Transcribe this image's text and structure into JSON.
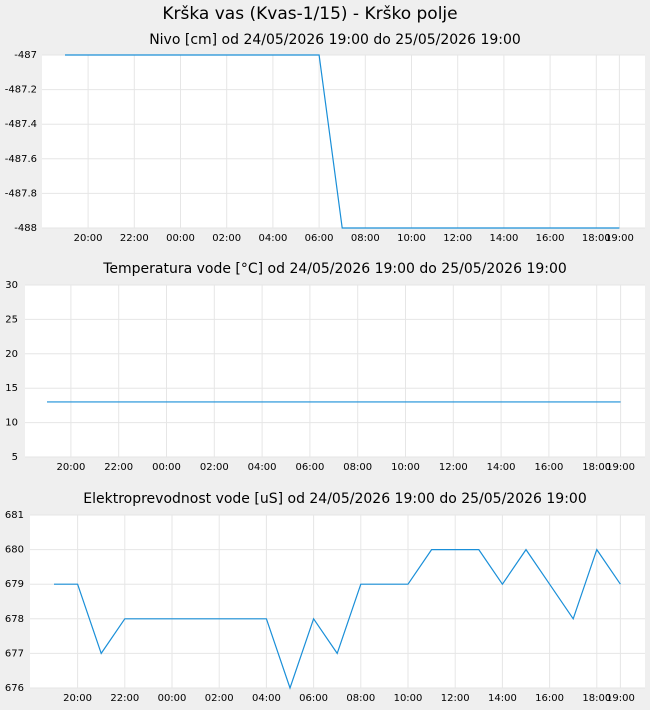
{
  "title": "Krška vas (Kvas-1/15) - Krško polje",
  "chart_data": [
    {
      "type": "line",
      "title": "Nivo [cm] od 24/05/2026 19:00 do 25/05/2026 19:00",
      "categories": [
        null,
        "20:00",
        null,
        "22:00",
        null,
        "00:00",
        null,
        "02:00",
        null,
        "04:00",
        null,
        "06:00",
        null,
        "08:00",
        null,
        "10:00",
        null,
        "12:00",
        null,
        "14:00",
        null,
        "16:00",
        null,
        "18:00",
        "19:00"
      ],
      "series": [
        {
          "color": "#1a8fd8",
          "values": [
            -487,
            -487,
            -487,
            -487,
            -487,
            -487,
            -487,
            -487,
            -487,
            -487,
            -487,
            -487,
            -488,
            -488,
            -488,
            -488,
            -488,
            -488,
            -488,
            -488,
            -488,
            -488,
            -488,
            -488,
            -488
          ]
        }
      ],
      "ylim": [
        -488,
        -487
      ],
      "yticks": [
        -488,
        -487.8,
        -487.6,
        -487.4,
        -487.2,
        -487
      ],
      "grid": true
    },
    {
      "type": "line",
      "title": "Temperatura vode [°C] od 24/05/2026 19:00 do 25/05/2026 19:00",
      "categories": [
        null,
        "20:00",
        null,
        "22:00",
        null,
        "00:00",
        null,
        "02:00",
        null,
        "04:00",
        null,
        "06:00",
        null,
        "08:00",
        null,
        "10:00",
        null,
        "12:00",
        null,
        "14:00",
        null,
        "16:00",
        null,
        "18:00",
        "19:00"
      ],
      "series": [
        {
          "color": "#1a8fd8",
          "values": [
            13,
            13,
            13,
            13,
            13,
            13,
            13,
            13,
            13,
            13,
            13,
            13,
            13,
            13,
            13,
            13,
            13,
            13,
            13,
            13,
            13,
            13,
            13,
            13,
            13
          ]
        }
      ],
      "ylim": [
        5,
        30
      ],
      "yticks": [
        5,
        10,
        15,
        20,
        25,
        30
      ],
      "grid": true
    },
    {
      "type": "line",
      "title": "Elektroprevodnost vode [uS] od 24/05/2026 19:00 do 25/05/2026 19:00",
      "categories": [
        null,
        "20:00",
        null,
        "22:00",
        null,
        "00:00",
        null,
        "02:00",
        null,
        "04:00",
        null,
        "06:00",
        null,
        "08:00",
        null,
        "10:00",
        null,
        "12:00",
        null,
        "14:00",
        null,
        "16:00",
        null,
        "18:00",
        "19:00"
      ],
      "series": [
        {
          "color": "#1a8fd8",
          "values": [
            679,
            679,
            677,
            678,
            678,
            678,
            678,
            678,
            678,
            678,
            676,
            678,
            677,
            679,
            679,
            679,
            680,
            680,
            680,
            679,
            680,
            679,
            678,
            680,
            679
          ]
        }
      ],
      "ylim": [
        676,
        681
      ],
      "yticks": [
        676,
        677,
        678,
        679,
        680,
        681
      ],
      "grid": true
    }
  ]
}
